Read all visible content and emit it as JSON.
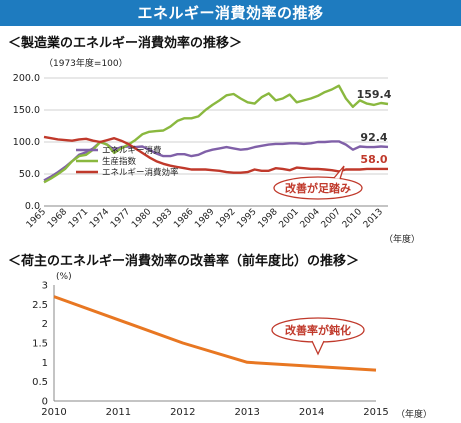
{
  "banner": {
    "title": "エネルギー消費効率の推移"
  },
  "chart_data": [
    {
      "type": "line",
      "title": "＜製造業のエネルギー消費効率の推移＞",
      "index_note": "（1973年度=100）",
      "xlabel": "（年度）",
      "ylabel": "",
      "xlim": [
        1965,
        2014
      ],
      "ylim": [
        0,
        200
      ],
      "grid": true,
      "legend": "bottom-left",
      "x_ticks": [
        1965,
        1968,
        1971,
        1974,
        1977,
        1980,
        1983,
        1986,
        1989,
        1992,
        1995,
        1998,
        2001,
        2004,
        2007,
        2010,
        2013
      ],
      "y_ticks": [
        "0.0",
        "50.0",
        "100.0",
        "150.0",
        "200.0"
      ],
      "x": [
        1965,
        1966,
        1967,
        1968,
        1969,
        1970,
        1971,
        1972,
        1973,
        1974,
        1975,
        1976,
        1977,
        1978,
        1979,
        1980,
        1981,
        1982,
        1983,
        1984,
        1985,
        1986,
        1987,
        1988,
        1989,
        1990,
        1991,
        1992,
        1993,
        1994,
        1995,
        1996,
        1997,
        1998,
        1999,
        2000,
        2001,
        2002,
        2003,
        2004,
        2005,
        2006,
        2007,
        2008,
        2009,
        2010,
        2011,
        2012,
        2013,
        2014
      ],
      "series": [
        {
          "name": "エネルギー消費",
          "color": "#8060a8",
          "values": [
            40,
            46,
            53,
            61,
            70,
            80,
            84,
            90,
            100,
            96,
            88,
            92,
            93,
            92,
            93,
            88,
            82,
            78,
            78,
            81,
            81,
            78,
            80,
            85,
            88,
            90,
            92,
            90,
            88,
            89,
            92,
            94,
            96,
            97,
            97,
            98,
            98,
            97,
            98,
            100,
            100,
            101,
            101,
            96,
            88,
            93,
            92,
            92,
            93,
            92.4
          ]
        },
        {
          "name": "生産指数",
          "color": "#8ab83f",
          "values": [
            37,
            43,
            50,
            58,
            70,
            78,
            80,
            88,
            100,
            96,
            83,
            90,
            96,
            103,
            112,
            116,
            117,
            118,
            124,
            133,
            137,
            137,
            140,
            150,
            158,
            165,
            173,
            175,
            168,
            162,
            160,
            170,
            176,
            165,
            168,
            174,
            162,
            165,
            168,
            172,
            178,
            182,
            188,
            168,
            155,
            165,
            160,
            158,
            161,
            159.4
          ]
        },
        {
          "name": "エネルギー消費効率",
          "color": "#c0392b",
          "values": [
            108,
            106,
            104,
            103,
            102,
            104,
            105,
            102,
            100,
            103,
            106,
            102,
            97,
            90,
            83,
            76,
            70,
            66,
            63,
            61,
            59,
            57,
            57,
            57,
            56,
            55,
            53,
            52,
            52,
            53,
            57,
            55,
            55,
            59,
            58,
            56,
            60,
            59,
            58,
            58,
            57,
            56,
            54,
            57,
            57,
            57,
            58,
            58,
            58,
            58.0
          ]
        }
      ],
      "annotations": [
        {
          "text": "159.4",
          "series": "生産指数",
          "color": "#333333"
        },
        {
          "text": "92.4",
          "series": "エネルギー消費",
          "color": "#333333"
        },
        {
          "text": "58.0",
          "series": "エネルギー消費効率",
          "color": "#c0392b"
        },
        {
          "text": "改善が足踏み",
          "kind": "callout",
          "color": "#c0392b"
        }
      ]
    },
    {
      "type": "line",
      "title": "＜荷主のエネルギー消費効率の改善率（前年度比）の推移＞",
      "unit": "(%)",
      "xlabel": "（年度）",
      "ylabel": "",
      "xlim": [
        2010,
        2015
      ],
      "ylim": [
        0,
        3
      ],
      "grid": false,
      "x_ticks": [
        2010,
        2011,
        2012,
        2013,
        2014,
        2015
      ],
      "y_ticks": [
        "0",
        "0.5",
        "1",
        "1.5",
        "2",
        "2.5",
        "3"
      ],
      "x": [
        2010,
        2011,
        2012,
        2013,
        2014,
        2015
      ],
      "series": [
        {
          "color": "#e87722",
          "values": [
            2.7,
            2.1,
            1.5,
            1.0,
            0.9,
            0.8
          ]
        }
      ],
      "annotations": [
        {
          "text": "改善率が鈍化",
          "kind": "callout",
          "color": "#c0392b"
        }
      ]
    }
  ]
}
